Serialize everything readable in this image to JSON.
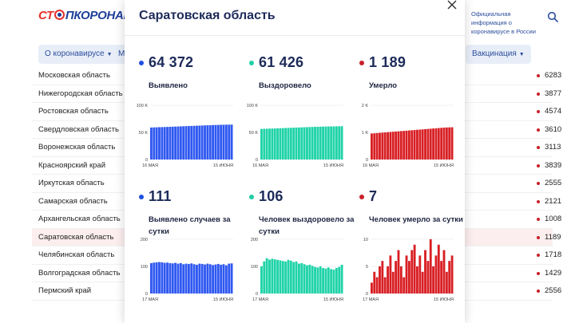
{
  "site": {
    "logo_part1": "СТ",
    "logo_part2": "ПКОРОНАВИ",
    "official_info": "Официальная информация о коронавирусе в России"
  },
  "nav": {
    "about_label": "О коронавирусе",
    "second_label": "М",
    "vaccination_label": "Вакцинация"
  },
  "regions": [
    {
      "name": "Московская область",
      "value": "6283"
    },
    {
      "name": "Нижегородская область",
      "value": "3877"
    },
    {
      "name": "Ростовская область",
      "value": "4574"
    },
    {
      "name": "Свердловская область",
      "value": "3610"
    },
    {
      "name": "Воронежская область",
      "value": "3113"
    },
    {
      "name": "Красноярский край",
      "value": "3839"
    },
    {
      "name": "Иркутская область",
      "value": "2555"
    },
    {
      "name": "Самарская область",
      "value": "2121"
    },
    {
      "name": "Архангельская область",
      "value": "1008"
    },
    {
      "name": "Саратовская область",
      "value": "1189"
    },
    {
      "name": "Челябинская область",
      "value": "1718"
    },
    {
      "name": "Волгоградская область",
      "value": "1429"
    },
    {
      "name": "Пермский край",
      "value": "2556"
    }
  ],
  "modal": {
    "title": "Саратовская область",
    "stats": [
      {
        "value": "64 372",
        "label": "Выявлено",
        "color": "#1f4fe0"
      },
      {
        "value": "61 426",
        "label": "Выздоровело",
        "color": "#1fcfa6"
      },
      {
        "value": "1 189",
        "label": "Умерло",
        "color": "#c8202a"
      },
      {
        "value": "111",
        "label": "Выявлено случаев за сутки",
        "color": "#1f4fe0"
      },
      {
        "value": "106",
        "label": "Человек выздоровело за сутки",
        "color": "#1fcfa6"
      },
      {
        "value": "7",
        "label": "Человек умерло за сутки",
        "color": "#c8202a"
      }
    ]
  },
  "chart_data": [
    {
      "type": "bar",
      "name": "total-detected",
      "color": "#2f58f0",
      "yticks": [
        "100 K",
        "50 K",
        "0"
      ],
      "ylim": [
        0,
        100000
      ],
      "xlabels": [
        "16 МАЯ",
        "15 ИЮНЯ"
      ],
      "values": [
        59000,
        59200,
        59400,
        59600,
        59700,
        59900,
        60100,
        60300,
        60500,
        60700,
        60900,
        61100,
        61300,
        61500,
        61700,
        61900,
        62100,
        62300,
        62500,
        62700,
        62900,
        63100,
        63300,
        63500,
        63700,
        63800,
        64000,
        64100,
        64200,
        64300,
        64372
      ]
    },
    {
      "type": "bar",
      "name": "total-recovered",
      "color": "#1fd3a8",
      "yticks": [
        "100 K",
        "50 K",
        "0"
      ],
      "ylim": [
        0,
        100000
      ],
      "xlabels": [
        "16 МАЯ",
        "15 ИЮНЯ"
      ],
      "values": [
        56400,
        56600,
        56800,
        57000,
        57100,
        57300,
        57500,
        57700,
        57900,
        58100,
        58300,
        58500,
        58700,
        58900,
        59100,
        59300,
        59500,
        59700,
        59900,
        60000,
        60200,
        60400,
        60500,
        60700,
        60800,
        60900,
        61000,
        61100,
        61200,
        61300,
        61426
      ]
    },
    {
      "type": "bar",
      "name": "total-deaths",
      "color": "#d81f24",
      "yticks": [
        "2 K",
        "1 K",
        "0"
      ],
      "ylim": [
        0,
        2000
      ],
      "xlabels": [
        "16 МАЯ",
        "15 ИЮНЯ"
      ],
      "values": [
        960,
        968,
        976,
        984,
        992,
        1000,
        1008,
        1016,
        1024,
        1032,
        1040,
        1048,
        1056,
        1064,
        1072,
        1080,
        1088,
        1096,
        1104,
        1112,
        1120,
        1128,
        1136,
        1144,
        1152,
        1160,
        1168,
        1176,
        1182,
        1186,
        1189
      ]
    },
    {
      "type": "bar",
      "name": "daily-detected",
      "color": "#2f58f0",
      "yticks": [
        "200",
        "100",
        "0"
      ],
      "ylim": [
        0,
        200
      ],
      "xlabels": [
        "17 МАЯ",
        "15 ИЮНЯ"
      ],
      "values": [
        112,
        114,
        115,
        116,
        115,
        113,
        114,
        112,
        111,
        113,
        110,
        112,
        108,
        110,
        109,
        111,
        108,
        106,
        110,
        109,
        107,
        110,
        108,
        105,
        107,
        109,
        106,
        108,
        104,
        110,
        111
      ]
    },
    {
      "type": "bar",
      "name": "daily-recovered",
      "color": "#1fd3a8",
      "yticks": [
        "200",
        "100",
        "0"
      ],
      "ylim": [
        0,
        200
      ],
      "xlabels": [
        "17 МАЯ",
        "15 ИЮНЯ"
      ],
      "values": [
        100,
        118,
        130,
        125,
        128,
        126,
        124,
        122,
        120,
        118,
        124,
        121,
        116,
        118,
        110,
        112,
        108,
        104,
        106,
        102,
        98,
        96,
        100,
        94,
        92,
        96,
        90,
        88,
        94,
        98,
        106
      ]
    },
    {
      "type": "bar",
      "name": "daily-deaths",
      "color": "#d81f24",
      "yticks": [
        "10",
        "5",
        "0"
      ],
      "ylim": [
        0,
        10
      ],
      "xlabels": [
        "17 МАЯ",
        "15 ИЮНЯ"
      ],
      "values": [
        2,
        4,
        3,
        5,
        6,
        3,
        5,
        7,
        4,
        6,
        8,
        5,
        3,
        7,
        6,
        8,
        9,
        5,
        7,
        4,
        8,
        6,
        10,
        5,
        7,
        9,
        6,
        8,
        4,
        6,
        7
      ]
    }
  ]
}
